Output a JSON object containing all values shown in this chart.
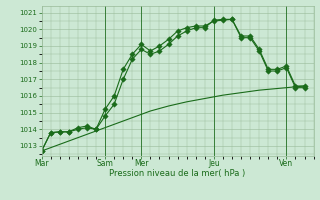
{
  "background_color": "#cce8d4",
  "grid_color": "#99bb99",
  "line_color": "#1a6b1a",
  "xlabel": "Pression niveau de la mer( hPa )",
  "ylim": [
    1012.4,
    1021.4
  ],
  "yticks": [
    1013,
    1014,
    1015,
    1016,
    1017,
    1018,
    1019,
    1020,
    1021
  ],
  "day_labels": [
    "Mar",
    "Sam",
    "Mer",
    "Jeu",
    "Ven"
  ],
  "day_positions": [
    0,
    3.5,
    5.5,
    9.5,
    13.5
  ],
  "xlim": [
    0,
    15.0
  ],
  "series1_x": [
    0,
    0.5,
    1.0,
    1.5,
    2.0,
    2.5,
    3.0,
    3.5,
    4.0,
    4.5,
    5.0,
    5.5,
    6.0,
    6.5,
    7.0,
    7.5,
    8.0,
    8.5,
    9.0,
    9.5,
    10.0,
    10.5,
    11.0,
    11.5,
    12.0,
    12.5,
    13.0,
    13.5,
    14.0,
    14.5
  ],
  "series1_y": [
    1012.7,
    1013.8,
    1013.85,
    1013.85,
    1014.1,
    1014.2,
    1014.0,
    1015.2,
    1016.0,
    1017.6,
    1018.5,
    1019.1,
    1018.7,
    1019.0,
    1019.4,
    1019.9,
    1020.1,
    1020.2,
    1020.2,
    1020.5,
    1020.55,
    1020.6,
    1019.5,
    1019.5,
    1018.7,
    1017.5,
    1017.5,
    1017.7,
    1016.5,
    1016.5
  ],
  "series2_x": [
    0,
    0.5,
    1.0,
    1.5,
    2.0,
    2.5,
    3.0,
    3.5,
    4.0,
    4.5,
    5.0,
    5.5,
    6.0,
    6.5,
    7.0,
    7.5,
    8.0,
    8.5,
    9.0,
    9.5,
    10.0,
    10.5,
    11.0,
    11.5,
    12.0,
    12.5,
    13.0,
    13.5,
    14.0,
    14.5
  ],
  "series2_y": [
    1012.7,
    1013.8,
    1013.85,
    1013.85,
    1014.0,
    1014.1,
    1014.0,
    1014.8,
    1015.5,
    1017.0,
    1018.2,
    1018.8,
    1018.5,
    1018.7,
    1019.1,
    1019.6,
    1019.9,
    1020.1,
    1020.1,
    1020.55,
    1020.6,
    1020.6,
    1019.6,
    1019.6,
    1018.8,
    1017.6,
    1017.6,
    1017.8,
    1016.6,
    1016.6
  ],
  "series3_x": [
    0,
    1.0,
    2.0,
    3.0,
    4.0,
    5.0,
    6.0,
    7.0,
    8.0,
    9.0,
    10.0,
    11.0,
    12.0,
    13.0,
    14.0,
    14.5
  ],
  "series3_y": [
    1012.7,
    1013.1,
    1013.5,
    1013.9,
    1014.3,
    1014.7,
    1015.1,
    1015.4,
    1015.65,
    1015.85,
    1016.05,
    1016.2,
    1016.35,
    1016.45,
    1016.55,
    1016.6
  ]
}
